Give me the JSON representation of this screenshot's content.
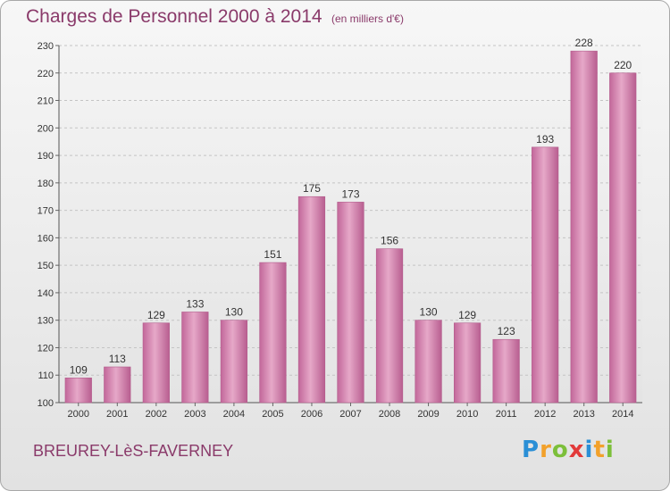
{
  "header": {
    "title": "Charges de Personnel 2000 à 2014",
    "subtitle": "(en milliers d'€)"
  },
  "footer": {
    "commune": "BREUREY-LèS-FAVERNEY",
    "logo_letters": [
      "P",
      "r",
      "o",
      "x",
      "i",
      "t",
      "i"
    ],
    "logo_colors": [
      "#2a8fd6",
      "#f2a12b",
      "#7cbf3a",
      "#e23a3a",
      "#2a8fd6",
      "#f2a12b",
      "#7cbf3a"
    ]
  },
  "chart_data": {
    "type": "bar",
    "title": "Charges de Personnel 2000 à 2014",
    "subtitle": "(en milliers d'€)",
    "xlabel": "",
    "ylabel": "",
    "categories": [
      "2000",
      "2001",
      "2002",
      "2003",
      "2004",
      "2005",
      "2006",
      "2007",
      "2008",
      "2009",
      "2010",
      "2011",
      "2012",
      "2013",
      "2014"
    ],
    "values": [
      109,
      113,
      129,
      133,
      130,
      151,
      175,
      173,
      156,
      130,
      129,
      123,
      193,
      228,
      220
    ],
    "ylim": [
      100,
      230
    ],
    "yticks": [
      100,
      110,
      120,
      130,
      140,
      150,
      160,
      170,
      180,
      190,
      200,
      210,
      220,
      230
    ],
    "grid": true,
    "legend": "none",
    "bar_color": "#c8709e",
    "bar_color_light": "#e6a8c8"
  }
}
